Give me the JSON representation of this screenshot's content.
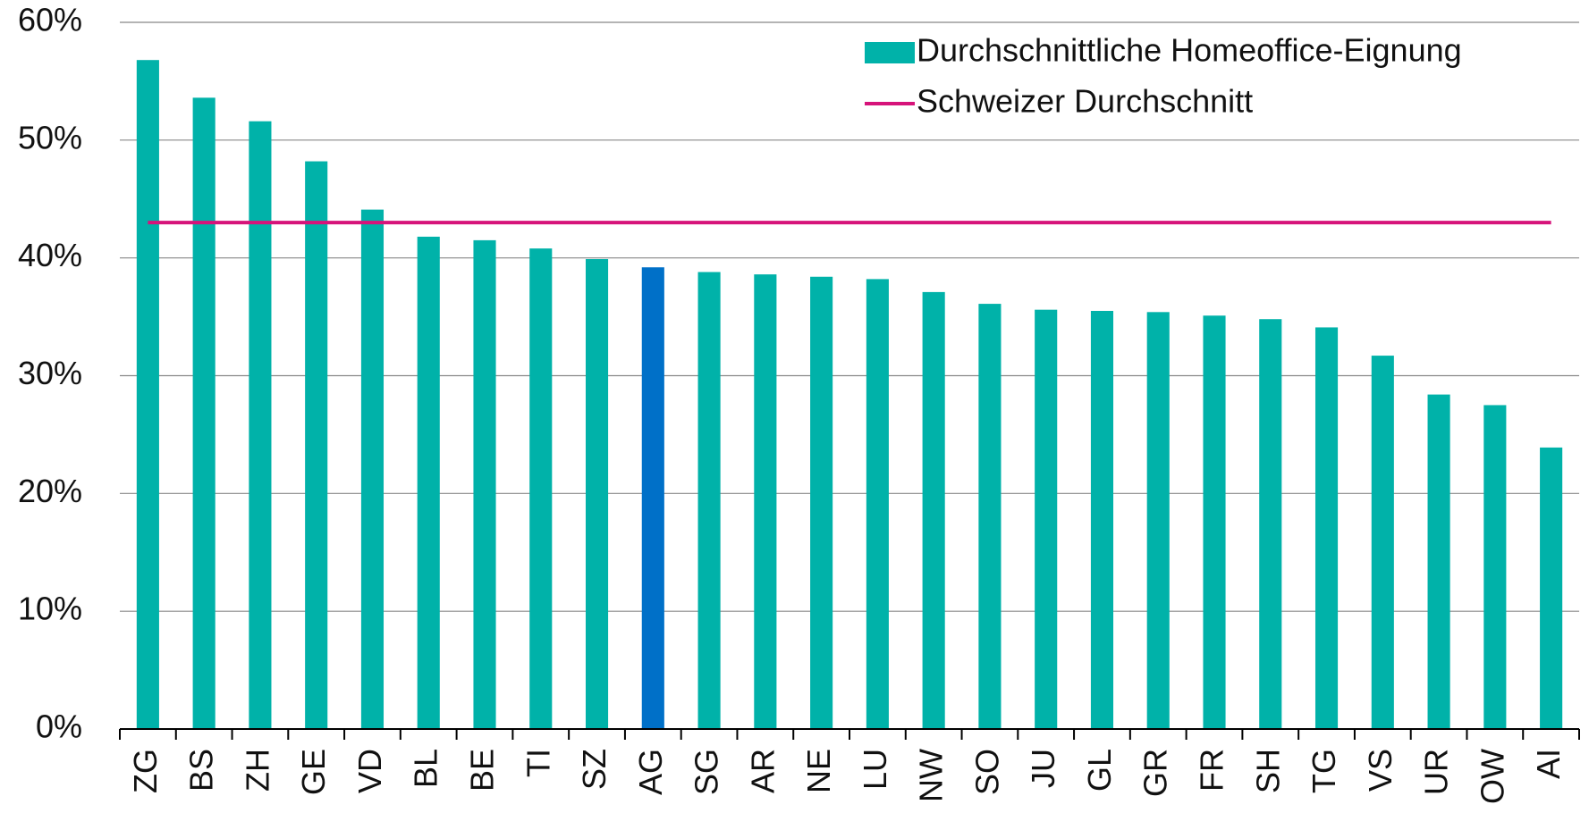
{
  "chart_data": {
    "type": "bar",
    "categories": [
      "ZG",
      "BS",
      "ZH",
      "GE",
      "VD",
      "BL",
      "BE",
      "TI",
      "SZ",
      "AG",
      "SG",
      "AR",
      "NE",
      "LU",
      "NW",
      "SO",
      "JU",
      "GL",
      "GR",
      "FR",
      "SH",
      "TG",
      "VS",
      "UR",
      "OW",
      "AI"
    ],
    "series": [
      {
        "name": "Durchschnittliche Homeoffice-Eignung",
        "color": "#00b2a9",
        "values": [
          56.8,
          53.6,
          51.6,
          48.2,
          44.1,
          41.8,
          41.5,
          40.8,
          39.9,
          39.2,
          38.8,
          38.6,
          38.4,
          38.2,
          37.1,
          36.1,
          35.6,
          35.5,
          35.4,
          35.1,
          34.8,
          34.1,
          31.7,
          28.4,
          27.5,
          23.9
        ],
        "colors": [
          "#00b2a9",
          "#00b2a9",
          "#00b2a9",
          "#00b2a9",
          "#00b2a9",
          "#00b2a9",
          "#00b2a9",
          "#00b2a9",
          "#00b2a9",
          "#0070c8",
          "#00b2a9",
          "#00b2a9",
          "#00b2a9",
          "#00b2a9",
          "#00b2a9",
          "#00b2a9",
          "#00b2a9",
          "#00b2a9",
          "#00b2a9",
          "#00b2a9",
          "#00b2a9",
          "#00b2a9",
          "#00b2a9",
          "#00b2a9",
          "#00b2a9",
          "#00b2a9"
        ]
      }
    ],
    "average": {
      "name": "Schweizer Durchschnitt",
      "color": "#d6137a",
      "value": 43.0
    },
    "ylim": [
      0,
      60
    ],
    "yticks": [
      {
        "value": 0,
        "label": "0%"
      },
      {
        "value": 10,
        "label": "10%"
      },
      {
        "value": 20,
        "label": "20%"
      },
      {
        "value": 30,
        "label": "30%"
      },
      {
        "value": 40,
        "label": "40%"
      },
      {
        "value": 50,
        "label": "50%"
      },
      {
        "value": 60,
        "label": "60%"
      }
    ],
    "grid": true,
    "legend": "top-right"
  }
}
